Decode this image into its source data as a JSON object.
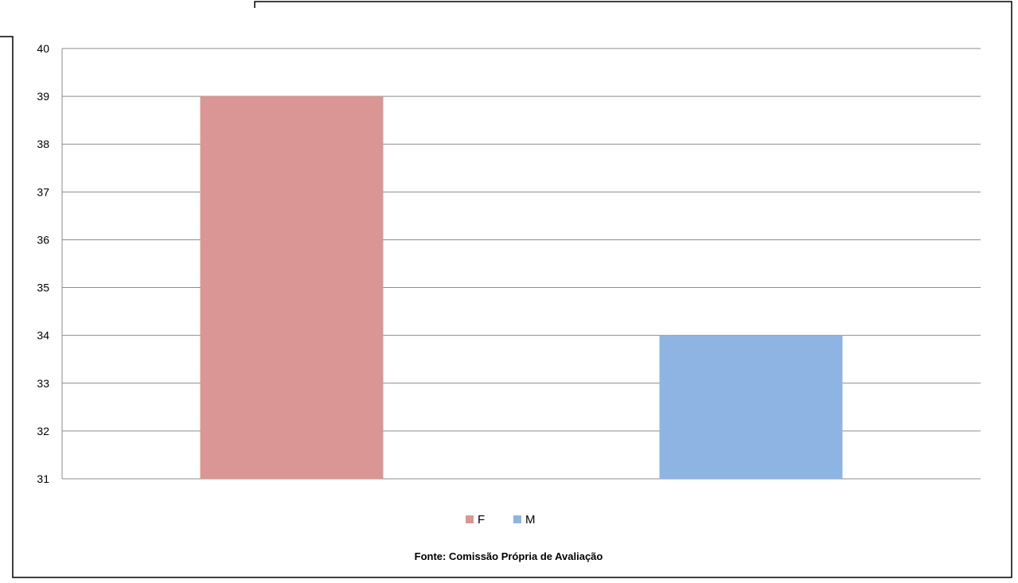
{
  "chart_data": {
    "type": "bar",
    "categories": [
      "F",
      "M"
    ],
    "series": [
      {
        "name": "F",
        "values": [
          39,
          null
        ],
        "color": "#d99694"
      },
      {
        "name": "M",
        "values": [
          null,
          34
        ],
        "color": "#8eb4e3"
      }
    ],
    "values": [
      39,
      34
    ],
    "ylim": [
      31,
      40
    ],
    "yticks": [
      31,
      32,
      33,
      34,
      35,
      36,
      37,
      38,
      39,
      40
    ],
    "grid": true,
    "legend_position": "bottom",
    "legend": [
      {
        "label": "F",
        "color": "#d99694"
      },
      {
        "label": "M",
        "color": "#8eb4e3"
      }
    ],
    "title": "",
    "xlabel": "",
    "ylabel": "",
    "source": "Fonte: Comissão Própria de Avaliação"
  }
}
